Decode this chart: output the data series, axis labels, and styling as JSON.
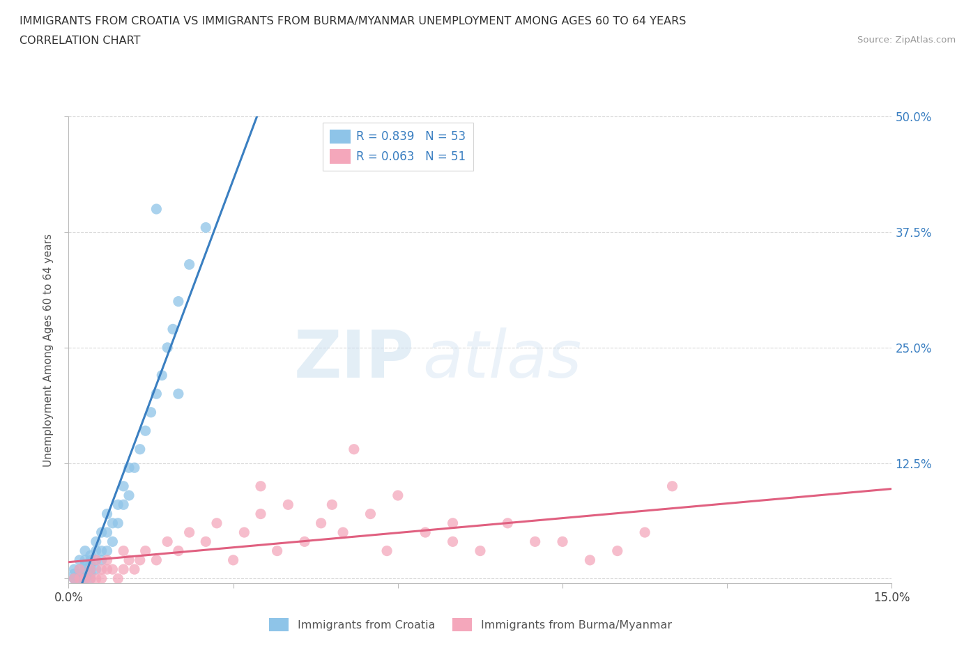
{
  "title_line1": "IMMIGRANTS FROM CROATIA VS IMMIGRANTS FROM BURMA/MYANMAR UNEMPLOYMENT AMONG AGES 60 TO 64 YEARS",
  "title_line2": "CORRELATION CHART",
  "source_text": "Source: ZipAtlas.com",
  "ylabel": "Unemployment Among Ages 60 to 64 years",
  "xlim": [
    0.0,
    0.15
  ],
  "ylim": [
    -0.005,
    0.5
  ],
  "yticks_right": [
    0.0,
    0.125,
    0.25,
    0.375,
    0.5
  ],
  "ytick_right_labels": [
    "",
    "12.5%",
    "25.0%",
    "37.5%",
    "50.0%"
  ],
  "croatia_color": "#8ec4e8",
  "burma_color": "#f4a7bb",
  "croatia_line_color": "#3a7fc1",
  "burma_line_color": "#e06080",
  "legend_label_croatia": "Immigrants from Croatia",
  "legend_label_burma": "Immigrants from Burma/Myanmar",
  "R_croatia": 0.839,
  "N_croatia": 53,
  "R_burma": 0.063,
  "N_burma": 51,
  "watermark_zip": "ZIP",
  "watermark_atlas": "atlas",
  "background_color": "#ffffff",
  "grid_color": "#d8d8d8",
  "croatia_x": [
    0.001,
    0.001,
    0.001,
    0.001,
    0.002,
    0.002,
    0.002,
    0.002,
    0.002,
    0.003,
    0.003,
    0.003,
    0.003,
    0.003,
    0.003,
    0.003,
    0.004,
    0.004,
    0.004,
    0.004,
    0.004,
    0.004,
    0.005,
    0.005,
    0.005,
    0.005,
    0.006,
    0.006,
    0.006,
    0.007,
    0.007,
    0.007,
    0.008,
    0.008,
    0.009,
    0.009,
    0.01,
    0.01,
    0.011,
    0.011,
    0.012,
    0.013,
    0.014,
    0.015,
    0.016,
    0.017,
    0.018,
    0.019,
    0.02,
    0.022,
    0.025,
    0.016,
    0.02
  ],
  "croatia_y": [
    0.0,
    0.0,
    0.005,
    0.01,
    0.0,
    0.0,
    0.005,
    0.01,
    0.02,
    0.0,
    0.0,
    0.005,
    0.01,
    0.015,
    0.02,
    0.03,
    0.0,
    0.005,
    0.01,
    0.015,
    0.02,
    0.025,
    0.01,
    0.02,
    0.03,
    0.04,
    0.02,
    0.03,
    0.05,
    0.03,
    0.05,
    0.07,
    0.04,
    0.06,
    0.06,
    0.08,
    0.08,
    0.1,
    0.09,
    0.12,
    0.12,
    0.14,
    0.16,
    0.18,
    0.2,
    0.22,
    0.25,
    0.27,
    0.3,
    0.34,
    0.38,
    0.4,
    0.2
  ],
  "burma_x": [
    0.001,
    0.002,
    0.002,
    0.003,
    0.004,
    0.004,
    0.005,
    0.005,
    0.006,
    0.006,
    0.007,
    0.007,
    0.008,
    0.009,
    0.01,
    0.01,
    0.011,
    0.012,
    0.013,
    0.014,
    0.016,
    0.018,
    0.02,
    0.022,
    0.025,
    0.027,
    0.03,
    0.032,
    0.035,
    0.038,
    0.04,
    0.043,
    0.046,
    0.05,
    0.055,
    0.058,
    0.06,
    0.065,
    0.07,
    0.075,
    0.08,
    0.09,
    0.095,
    0.1,
    0.105,
    0.11,
    0.052,
    0.035,
    0.048,
    0.085,
    0.07
  ],
  "burma_y": [
    0.0,
    0.0,
    0.01,
    0.0,
    0.0,
    0.01,
    0.0,
    0.02,
    0.0,
    0.01,
    0.01,
    0.02,
    0.01,
    0.0,
    0.01,
    0.03,
    0.02,
    0.01,
    0.02,
    0.03,
    0.02,
    0.04,
    0.03,
    0.05,
    0.04,
    0.06,
    0.02,
    0.05,
    0.07,
    0.03,
    0.08,
    0.04,
    0.06,
    0.05,
    0.07,
    0.03,
    0.09,
    0.05,
    0.04,
    0.03,
    0.06,
    0.04,
    0.02,
    0.03,
    0.05,
    0.1,
    0.14,
    0.1,
    0.08,
    0.04,
    0.06
  ]
}
